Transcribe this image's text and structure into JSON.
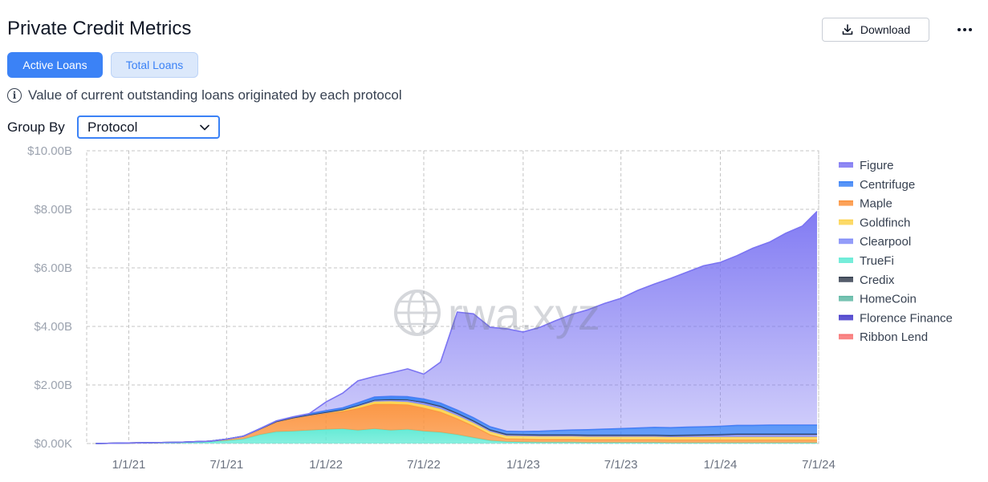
{
  "header": {
    "title": "Private Credit Metrics",
    "download_label": "Download",
    "download_icon": "download-icon",
    "more_icon": "more-horizontal-icon"
  },
  "tabs": [
    {
      "label": "Active Loans",
      "active": true
    },
    {
      "label": "Total Loans",
      "active": false
    }
  ],
  "info_text": "Value of current outstanding loans originated by each protocol",
  "group_by": {
    "label": "Group By",
    "selected": "Protocol"
  },
  "watermark": "rwa.xyz",
  "chart_data": {
    "type": "area",
    "stacked": true,
    "title": "",
    "xlabel": "",
    "ylabel": "",
    "y_unit": "USD billions",
    "ylim": [
      0,
      10
    ],
    "yticks": [
      {
        "value": 0,
        "label": "$0.00K"
      },
      {
        "value": 2,
        "label": "$2.00B"
      },
      {
        "value": 4,
        "label": "$4.00B"
      },
      {
        "value": 6,
        "label": "$6.00B"
      },
      {
        "value": 8,
        "label": "$8.00B"
      },
      {
        "value": 10,
        "label": "$10.00B"
      }
    ],
    "xlim": [
      "2020-10-15",
      "2024-07-01"
    ],
    "xticks": [
      "1/1/21",
      "7/1/21",
      "1/1/22",
      "7/1/22",
      "1/1/23",
      "7/1/23",
      "1/1/24",
      "7/1/24"
    ],
    "xtick_dates": [
      "2021-01-01",
      "2021-07-01",
      "2022-01-01",
      "2022-07-01",
      "2023-01-01",
      "2023-07-01",
      "2024-01-01",
      "2024-07-01"
    ],
    "grid": true,
    "legend_position": "right",
    "x": [
      "2020-11-01",
      "2021-01-01",
      "2021-04-01",
      "2021-06-01",
      "2021-07-01",
      "2021-08-01",
      "2021-09-01",
      "2021-10-01",
      "2021-11-01",
      "2021-12-01",
      "2022-01-01",
      "2022-02-01",
      "2022-03-01",
      "2022-04-01",
      "2022-05-01",
      "2022-06-01",
      "2022-07-01",
      "2022-08-01",
      "2022-09-01",
      "2022-10-01",
      "2022-11-01",
      "2022-12-01",
      "2023-01-01",
      "2023-02-01",
      "2023-03-01",
      "2023-04-01",
      "2023-05-01",
      "2023-06-01",
      "2023-07-01",
      "2023-08-01",
      "2023-09-01",
      "2023-10-01",
      "2023-11-01",
      "2023-12-01",
      "2024-01-01",
      "2024-02-01",
      "2024-03-01",
      "2024-04-01",
      "2024-05-01",
      "2024-06-01",
      "2024-06-28"
    ],
    "series": [
      {
        "name": "TrueFi",
        "color": "#5eead4",
        "values": [
          0,
          0.02,
          0.04,
          0.06,
          0.1,
          0.15,
          0.3,
          0.4,
          0.42,
          0.45,
          0.48,
          0.5,
          0.45,
          0.5,
          0.45,
          0.48,
          0.42,
          0.38,
          0.3,
          0.2,
          0.1,
          0.06,
          0.05,
          0.04,
          0.04,
          0.04,
          0.03,
          0.03,
          0.03,
          0.03,
          0.03,
          0.02,
          0.02,
          0.02,
          0.02,
          0.02,
          0.02,
          0.02,
          0.02,
          0.02,
          0.02
        ]
      },
      {
        "name": "Maple",
        "color": "#fb923c",
        "values": [
          0,
          0,
          0,
          0.02,
          0.05,
          0.1,
          0.2,
          0.35,
          0.45,
          0.5,
          0.55,
          0.6,
          0.75,
          0.85,
          0.9,
          0.85,
          0.8,
          0.7,
          0.55,
          0.4,
          0.2,
          0.1,
          0.1,
          0.1,
          0.1,
          0.1,
          0.1,
          0.1,
          0.1,
          0.1,
          0.1,
          0.1,
          0.1,
          0.1,
          0.1,
          0.1,
          0.1,
          0.1,
          0.1,
          0.1,
          0.1
        ]
      },
      {
        "name": "Goldfinch",
        "color": "#fcd34d",
        "values": [
          0,
          0,
          0,
          0,
          0,
          0,
          0,
          0,
          0.01,
          0.02,
          0.03,
          0.05,
          0.07,
          0.08,
          0.09,
          0.09,
          0.1,
          0.1,
          0.1,
          0.1,
          0.1,
          0.1,
          0.1,
          0.1,
          0.1,
          0.1,
          0.1,
          0.1,
          0.1,
          0.1,
          0.1,
          0.1,
          0.1,
          0.1,
          0.1,
          0.1,
          0.1,
          0.1,
          0.1,
          0.1,
          0.1
        ]
      },
      {
        "name": "Clearpool",
        "color": "#818cf8",
        "values": [
          0,
          0,
          0,
          0,
          0,
          0,
          0,
          0,
          0,
          0,
          0,
          0,
          0.02,
          0.04,
          0.05,
          0.06,
          0.07,
          0.07,
          0.06,
          0.05,
          0.04,
          0.03,
          0.03,
          0.03,
          0.03,
          0.03,
          0.03,
          0.03,
          0.03,
          0.03,
          0.03,
          0.03,
          0.04,
          0.05,
          0.06,
          0.08,
          0.08,
          0.08,
          0.08,
          0.08,
          0.08
        ]
      },
      {
        "name": "Credix",
        "color": "#374151",
        "values": [
          0,
          0,
          0,
          0,
          0,
          0,
          0,
          0,
          0,
          0.01,
          0.01,
          0.01,
          0.02,
          0.02,
          0.02,
          0.02,
          0.03,
          0.03,
          0.03,
          0.03,
          0.03,
          0.03,
          0.03,
          0.03,
          0.03,
          0.03,
          0.03,
          0.03,
          0.03,
          0.03,
          0.03,
          0.03,
          0.03,
          0.03,
          0.03,
          0.03,
          0.03,
          0.03,
          0.03,
          0.03,
          0.03
        ]
      },
      {
        "name": "HomeCoin",
        "color": "#5fb8a5",
        "values": [
          0,
          0,
          0,
          0,
          0,
          0,
          0,
          0,
          0,
          0,
          0,
          0,
          0,
          0,
          0,
          0,
          0,
          0,
          0,
          0,
          0,
          0,
          0,
          0,
          0,
          0,
          0,
          0,
          0,
          0,
          0,
          0,
          0,
          0,
          0,
          0,
          0,
          0,
          0,
          0,
          0
        ]
      },
      {
        "name": "Florence Finance",
        "color": "#4338ca",
        "values": [
          0,
          0,
          0,
          0,
          0,
          0,
          0,
          0,
          0,
          0,
          0,
          0,
          0,
          0,
          0,
          0,
          0,
          0,
          0,
          0,
          0,
          0,
          0,
          0,
          0,
          0,
          0,
          0,
          0,
          0,
          0,
          0,
          0,
          0,
          0,
          0,
          0,
          0,
          0,
          0,
          0
        ]
      },
      {
        "name": "Ribbon Lend",
        "color": "#f87171",
        "values": [
          0,
          0,
          0,
          0,
          0,
          0,
          0,
          0,
          0,
          0,
          0,
          0,
          0,
          0,
          0,
          0,
          0,
          0,
          0,
          0,
          0,
          0,
          0,
          0,
          0,
          0,
          0,
          0,
          0,
          0,
          0,
          0,
          0,
          0,
          0,
          0,
          0,
          0,
          0,
          0,
          0
        ]
      },
      {
        "name": "Centrifuge",
        "color": "#3b82f6",
        "values": [
          0,
          0,
          0,
          0,
          0,
          0,
          0.01,
          0.02,
          0.03,
          0.04,
          0.05,
          0.06,
          0.08,
          0.1,
          0.1,
          0.1,
          0.1,
          0.1,
          0.1,
          0.1,
          0.1,
          0.1,
          0.1,
          0.12,
          0.14,
          0.16,
          0.18,
          0.2,
          0.22,
          0.24,
          0.26,
          0.26,
          0.27,
          0.27,
          0.28,
          0.29,
          0.29,
          0.3,
          0.3,
          0.3,
          0.3
        ]
      },
      {
        "name": "Figure",
        "color": "#7b74f2",
        "values": [
          0,
          0,
          0,
          0,
          0,
          0,
          0,
          0,
          0,
          0,
          0.3,
          0.5,
          0.75,
          0.7,
          0.8,
          0.95,
          0.85,
          1.4,
          3.35,
          3.55,
          3.4,
          3.5,
          3.4,
          3.55,
          3.75,
          3.95,
          4.1,
          4.3,
          4.45,
          4.7,
          4.9,
          5.1,
          5.3,
          5.5,
          5.6,
          5.8,
          6.05,
          6.25,
          6.55,
          6.8,
          7.3
        ]
      }
    ],
    "legend": [
      "Figure",
      "Centrifuge",
      "Maple",
      "Goldfinch",
      "Clearpool",
      "TrueFi",
      "Credix",
      "HomeCoin",
      "Florence Finance",
      "Ribbon Lend"
    ]
  }
}
